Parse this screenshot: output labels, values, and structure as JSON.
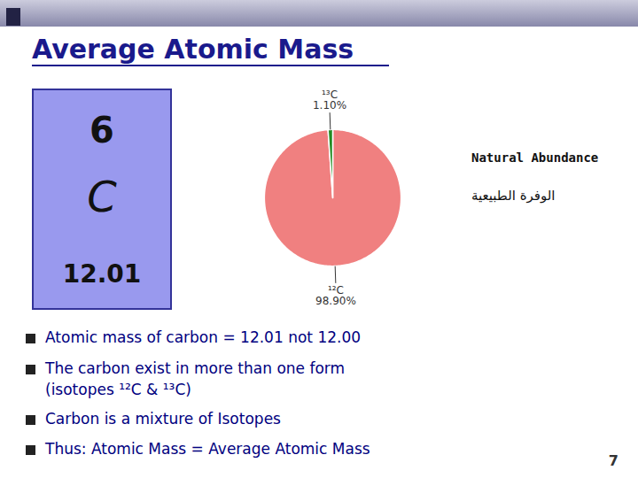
{
  "chart_data": {
    "type": "pie",
    "title": "Average Atomic Mass",
    "categories": [
      "¹²C",
      "¹³C"
    ],
    "values": [
      98.9,
      1.1
    ],
    "value_labels": [
      "98.90%",
      "1.10%"
    ],
    "colors": [
      "#f08080",
      "#228B22"
    ],
    "data_labels": true,
    "annotations": [
      "6",
      "C",
      "12.01",
      "Natural Abundance",
      "الوفرة الطبيعية",
      "Atomic mass of carbon = 12.01 not 12.00",
      "The carbon exist in more than one form\n(isotopes ¹²C & ¹³C)",
      "Carbon is a mixture of Isotopes",
      "Thus: Atomic Mass = Average Atomic Mass",
      "7"
    ]
  }
}
